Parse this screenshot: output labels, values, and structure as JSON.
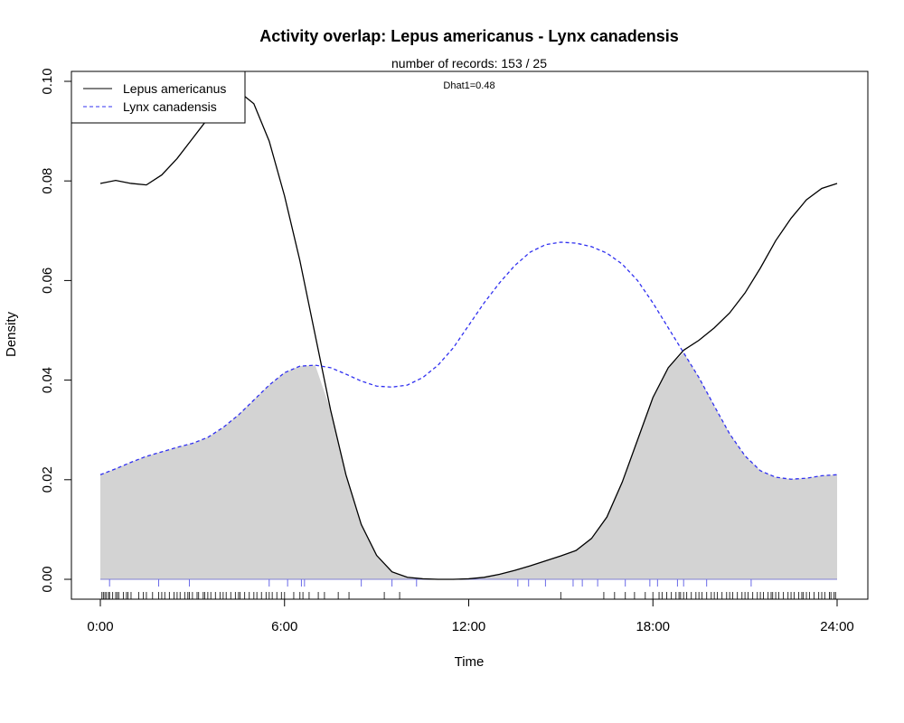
{
  "chart_data": {
    "type": "area",
    "title": "Activity overlap:  Lepus americanus - Lynx canadensis",
    "subtitle": "number of records: 153 / 25",
    "annotation": "Dhat1=0.48",
    "xlabel": "Time",
    "ylabel": "Density",
    "xlim": [
      0,
      24
    ],
    "ylim": [
      0,
      0.1
    ],
    "x_ticks": [
      0,
      6,
      12,
      18,
      24
    ],
    "x_tick_labels": [
      "0:00",
      "6:00",
      "12:00",
      "18:00",
      "24:00"
    ],
    "y_ticks": [
      0,
      0.02,
      0.04,
      0.06,
      0.08,
      0.1
    ],
    "y_tick_labels": [
      "0.00",
      "0.02",
      "0.04",
      "0.06",
      "0.08",
      "0.10"
    ],
    "legend_position": "top-left",
    "overlap_fill_color": "#d3d3d3",
    "series": [
      {
        "name": "Lepus americanus",
        "color": "#000000",
        "dash": "solid",
        "x": [
          0,
          0.5,
          1,
          1.5,
          2,
          2.5,
          3,
          3.5,
          4,
          4.5,
          5,
          5.5,
          6,
          6.5,
          7,
          7.5,
          8,
          8.5,
          9,
          9.5,
          10,
          10.5,
          11,
          11.5,
          12,
          12.5,
          13,
          13.5,
          14,
          14.5,
          15,
          15.5,
          16,
          16.5,
          17,
          17.5,
          18,
          18.5,
          19,
          19.5,
          20,
          20.5,
          21,
          21.5,
          22,
          22.5,
          23,
          23.5,
          24
        ],
        "values": [
          0.0795,
          0.0801,
          0.0795,
          0.0792,
          0.0812,
          0.0845,
          0.0885,
          0.0925,
          0.0965,
          0.098,
          0.0955,
          0.088,
          0.077,
          0.064,
          0.049,
          0.034,
          0.021,
          0.011,
          0.0048,
          0.0015,
          0.0004,
          0.0001,
          0.0,
          0.0,
          0.0001,
          0.0004,
          0.001,
          0.0018,
          0.0027,
          0.0037,
          0.0047,
          0.0058,
          0.0082,
          0.0125,
          0.0195,
          0.028,
          0.0365,
          0.0425,
          0.046,
          0.048,
          0.0505,
          0.0535,
          0.0575,
          0.0625,
          0.068,
          0.0725,
          0.0762,
          0.0785,
          0.0795
        ]
      },
      {
        "name": "Lynx canadensis",
        "color": "#3030f0",
        "dash": "dashed",
        "x": [
          0,
          0.5,
          1,
          1.5,
          2,
          2.5,
          3,
          3.5,
          4,
          4.5,
          5,
          5.5,
          6,
          6.5,
          7,
          7.5,
          8,
          8.5,
          9,
          9.5,
          10,
          10.5,
          11,
          11.5,
          12,
          12.5,
          13,
          13.5,
          14,
          14.5,
          15,
          15.5,
          16,
          16.5,
          17,
          17.5,
          18,
          18.5,
          19,
          19.5,
          20,
          20.5,
          21,
          21.5,
          22,
          22.5,
          23,
          23.5,
          24
        ],
        "values": [
          0.021,
          0.0222,
          0.0235,
          0.0247,
          0.0256,
          0.0265,
          0.0273,
          0.0285,
          0.0305,
          0.033,
          0.036,
          0.039,
          0.0415,
          0.0428,
          0.043,
          0.0425,
          0.0412,
          0.0398,
          0.0388,
          0.0386,
          0.039,
          0.0405,
          0.043,
          0.0465,
          0.051,
          0.0555,
          0.0595,
          0.063,
          0.0657,
          0.0672,
          0.0677,
          0.0675,
          0.0668,
          0.0655,
          0.0633,
          0.06,
          0.0555,
          0.0505,
          0.0455,
          0.0405,
          0.0348,
          0.0292,
          0.0248,
          0.0218,
          0.0205,
          0.0201,
          0.0203,
          0.0208,
          0.021
        ]
      }
    ],
    "rug_lepus": [
      0.05,
      0.1,
      0.15,
      0.2,
      0.27,
      0.3,
      0.4,
      0.5,
      0.55,
      0.6,
      0.75,
      0.85,
      0.9,
      1.0,
      1.25,
      1.4,
      1.5,
      1.7,
      1.9,
      2.0,
      2.1,
      2.25,
      2.4,
      2.5,
      2.6,
      2.75,
      2.85,
      2.9,
      3.0,
      3.15,
      3.2,
      3.35,
      3.4,
      3.5,
      3.6,
      3.75,
      3.9,
      4.0,
      4.1,
      4.25,
      4.4,
      4.5,
      4.55,
      4.7,
      4.85,
      5.0,
      5.1,
      5.25,
      5.4,
      5.5,
      5.6,
      5.75,
      5.9,
      6.0,
      6.3,
      6.5,
      6.6,
      6.8,
      7.1,
      7.3,
      7.75,
      8.1,
      9.25,
      9.75,
      15.0,
      16.4,
      16.75,
      17.1,
      17.4,
      17.75,
      18.0,
      18.2,
      18.3,
      18.45,
      18.6,
      18.75,
      18.85,
      18.9,
      19.0,
      19.1,
      19.25,
      19.4,
      19.5,
      19.6,
      19.75,
      19.9,
      20.0,
      20.1,
      20.25,
      20.4,
      20.5,
      20.6,
      20.75,
      20.9,
      21.0,
      21.1,
      21.25,
      21.4,
      21.5,
      21.6,
      21.75,
      21.85,
      21.9,
      22.0,
      22.1,
      22.25,
      22.4,
      22.5,
      22.6,
      22.75,
      22.85,
      22.9,
      23.0,
      23.1,
      23.25,
      23.4,
      23.5,
      23.6,
      23.75,
      23.8,
      23.9,
      23.95
    ],
    "rug_lynx": [
      0.3,
      1.9,
      2.9,
      5.5,
      6.1,
      6.55,
      6.65,
      8.5,
      9.5,
      10.3,
      13.6,
      13.95,
      14.5,
      15.4,
      15.7,
      16.2,
      17.1,
      17.9,
      18.15,
      18.8,
      19.0,
      19.75,
      21.2
    ]
  }
}
